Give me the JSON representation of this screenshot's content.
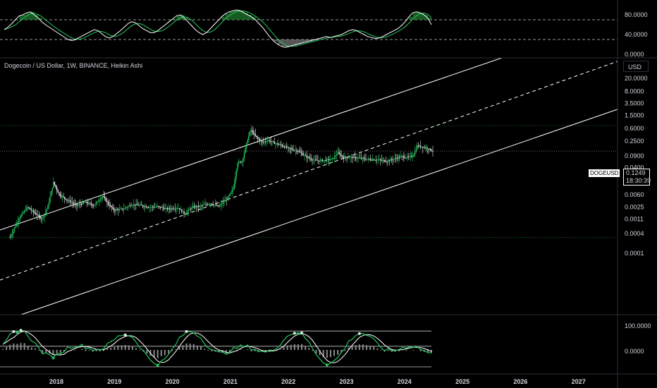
{
  "header": {
    "symbol_line": "Dogecoin / US Dollar, 1W, BINANCE, Heikin Ashi",
    "currency": "USD"
  },
  "price_marker": {
    "symbol": "DOGEUSD",
    "price": "0.1249",
    "countdown": "18:30:39"
  },
  "colors": {
    "background": "#000000",
    "up": "#22c55e",
    "down": "#e6e6e6",
    "channel": "#ffffff",
    "level": "#1f7a2e"
  },
  "chart_data": [
    {
      "type": "line",
      "name": "top-oscillator",
      "y_ticks": [
        "80.0000",
        "40.0000",
        "0.0000"
      ],
      "levels": [
        70,
        30
      ],
      "ylim": [
        0,
        100
      ]
    },
    {
      "type": "candlestick",
      "name": "price",
      "scale": "log",
      "y_ticks": [
        "20.0000",
        "8.0000",
        "3.5000",
        "1.5000",
        "0.6000",
        "0.2500",
        "0.0900",
        "0.0400",
        "0.0150",
        "0.0060",
        "0.0025",
        "0.0011",
        "0.0004",
        "0.0001"
      ],
      "x_ticks": [
        "2018",
        "2019",
        "2020",
        "2021",
        "2022",
        "2023",
        "2024",
        "2025",
        "2026",
        "2027"
      ],
      "last_price": 0.1249,
      "horizontal_levels": [
        0.74,
        0.0003
      ],
      "points": [
        [
          2017.2,
          0.0003
        ],
        [
          2017.35,
          0.0011
        ],
        [
          2017.5,
          0.0025
        ],
        [
          2017.6,
          0.0018
        ],
        [
          2017.75,
          0.0011
        ],
        [
          2017.85,
          0.0025
        ],
        [
          2017.95,
          0.014
        ],
        [
          2018.05,
          0.006
        ],
        [
          2018.2,
          0.004
        ],
        [
          2018.35,
          0.0028
        ],
        [
          2018.5,
          0.0035
        ],
        [
          2018.65,
          0.0028
        ],
        [
          2018.8,
          0.0055
        ],
        [
          2018.9,
          0.003
        ],
        [
          2019.0,
          0.002
        ],
        [
          2019.15,
          0.0022
        ],
        [
          2019.3,
          0.003
        ],
        [
          2019.45,
          0.0028
        ],
        [
          2019.6,
          0.0025
        ],
        [
          2019.75,
          0.0026
        ],
        [
          2019.9,
          0.0022
        ],
        [
          2020.1,
          0.0024
        ],
        [
          2020.2,
          0.0016
        ],
        [
          2020.35,
          0.0025
        ],
        [
          2020.5,
          0.0027
        ],
        [
          2020.65,
          0.0033
        ],
        [
          2020.8,
          0.0026
        ],
        [
          2020.95,
          0.0046
        ],
        [
          2021.05,
          0.009
        ],
        [
          2021.12,
          0.055
        ],
        [
          2021.2,
          0.06
        ],
        [
          2021.3,
          0.3
        ],
        [
          2021.35,
          0.55
        ],
        [
          2021.45,
          0.32
        ],
        [
          2021.55,
          0.23
        ],
        [
          2021.65,
          0.27
        ],
        [
          2021.75,
          0.22
        ],
        [
          2021.9,
          0.18
        ],
        [
          2022.0,
          0.15
        ],
        [
          2022.15,
          0.13
        ],
        [
          2022.3,
          0.085
        ],
        [
          2022.45,
          0.065
        ],
        [
          2022.6,
          0.065
        ],
        [
          2022.75,
          0.07
        ],
        [
          2022.85,
          0.11
        ],
        [
          2022.95,
          0.08
        ],
        [
          2023.1,
          0.08
        ],
        [
          2023.25,
          0.075
        ],
        [
          2023.4,
          0.07
        ],
        [
          2023.55,
          0.068
        ],
        [
          2023.7,
          0.062
        ],
        [
          2023.85,
          0.075
        ],
        [
          2023.95,
          0.085
        ],
        [
          2024.05,
          0.08
        ],
        [
          2024.15,
          0.09
        ],
        [
          2024.22,
          0.18
        ],
        [
          2024.3,
          0.17
        ],
        [
          2024.4,
          0.15
        ],
        [
          2024.5,
          0.1249
        ]
      ]
    },
    {
      "type": "line",
      "name": "bottom-oscillator",
      "y_ticks": [
        "100.0000",
        "0.0000"
      ],
      "levels": [
        80,
        20
      ]
    }
  ]
}
